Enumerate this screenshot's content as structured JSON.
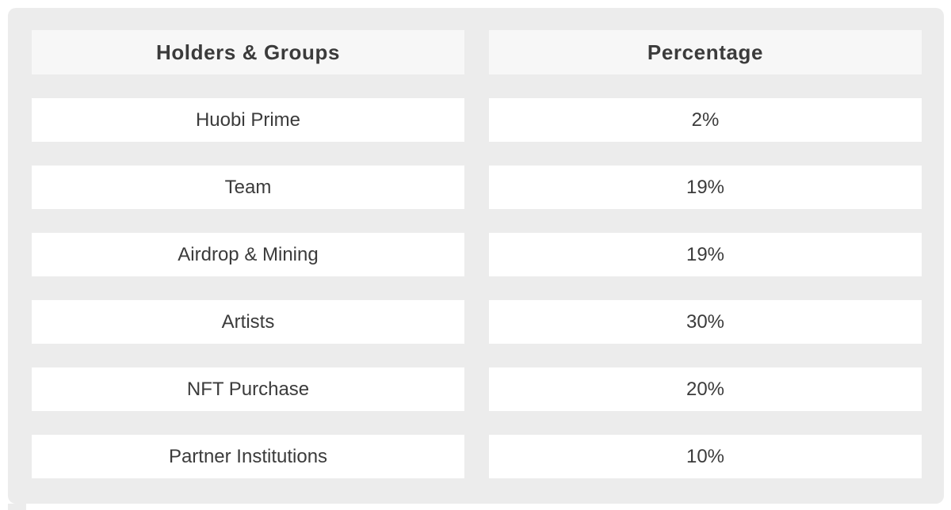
{
  "table": {
    "headers": [
      {
        "label": "Holders & Groups"
      },
      {
        "label": "Percentage"
      }
    ],
    "rows": [
      {
        "holder": "Huobi Prime",
        "percentage": "2%"
      },
      {
        "holder": "Team",
        "percentage": "19%"
      },
      {
        "holder": "Airdrop & Mining",
        "percentage": "19%"
      },
      {
        "holder": "Artists",
        "percentage": "30%"
      },
      {
        "holder": "NFT Purchase",
        "percentage": "20%"
      },
      {
        "holder": "Partner Institutions",
        "percentage": "10%"
      }
    ]
  },
  "chart_data": {
    "type": "table",
    "title": "",
    "columns": [
      "Holders & Groups",
      "Percentage"
    ],
    "categories": [
      "Huobi Prime",
      "Team",
      "Airdrop & Mining",
      "Artists",
      "NFT Purchase",
      "Partner Institutions"
    ],
    "values": [
      2,
      19,
      19,
      30,
      20,
      10
    ],
    "value_unit": "%"
  },
  "colors": {
    "page_bg": "#ffffff",
    "card_bg": "#ececec",
    "header_cell_bg": "#f7f7f7",
    "body_cell_bg": "#ffffff",
    "text": "#3b3b3b"
  }
}
